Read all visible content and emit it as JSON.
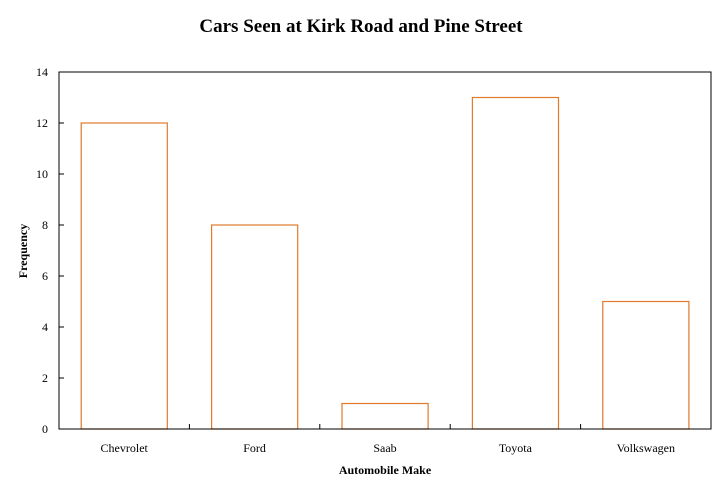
{
  "chart_data": {
    "type": "bar",
    "title": "Cars Seen at Kirk Road and Pine Street",
    "xlabel": "Automobile Make",
    "ylabel": "Frequency",
    "categories": [
      "Chevrolet",
      "Ford",
      "Saab",
      "Toyota",
      "Volkswagen"
    ],
    "values": [
      12,
      8,
      1,
      13,
      5
    ],
    "ylim": [
      0,
      14
    ],
    "yticks": [
      0,
      2,
      4,
      6,
      8,
      10,
      12,
      14
    ],
    "grid": false,
    "bar_fill": "#ffffff",
    "bar_stroke": "#e07a2c",
    "axis_color": "#000000"
  }
}
